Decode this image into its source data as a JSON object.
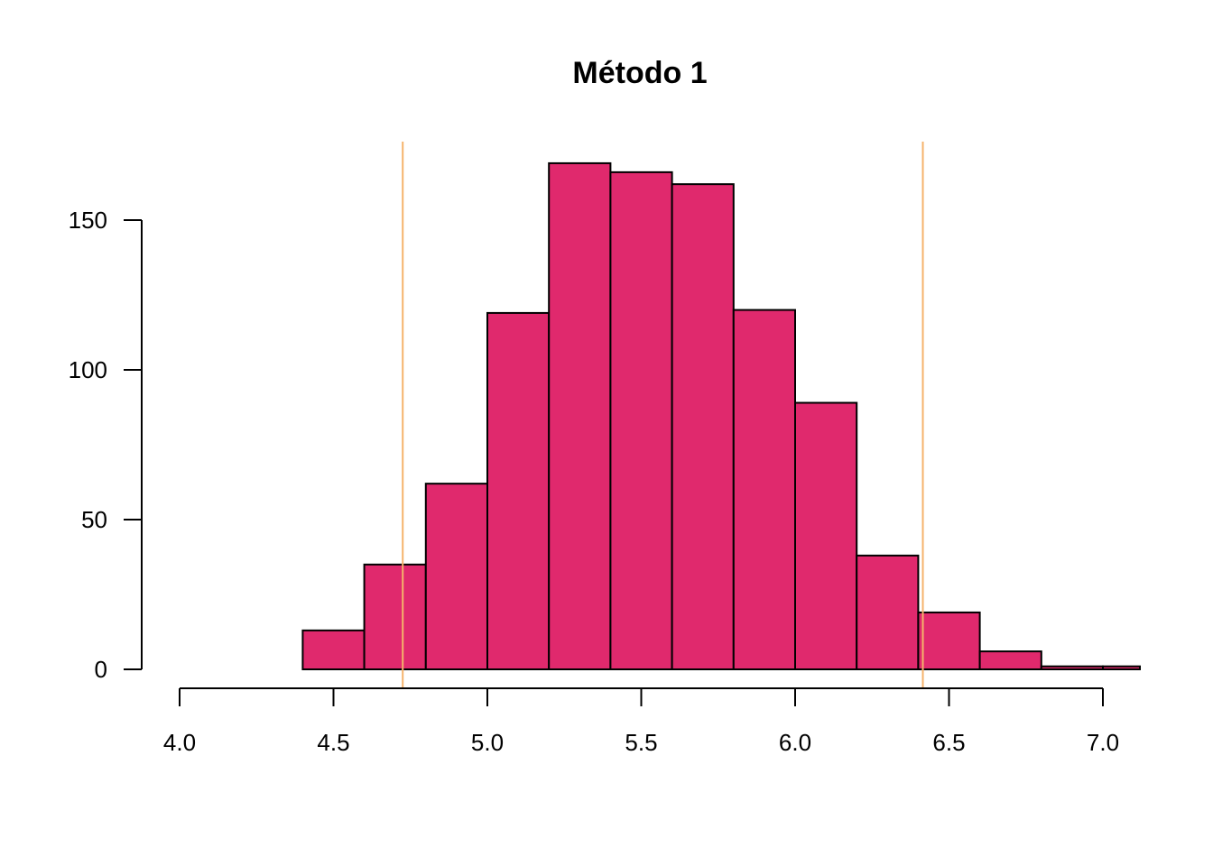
{
  "chart_data": {
    "type": "bar",
    "title": "Método 1",
    "xlabel": "",
    "ylabel": "",
    "x_ticks": [
      4.0,
      4.5,
      5.0,
      5.5,
      6.0,
      6.5,
      7.0
    ],
    "x_tick_labels": [
      "4.0",
      "4.5",
      "5.0",
      "5.5",
      "6.0",
      "6.5",
      "7.0"
    ],
    "y_ticks": [
      0,
      50,
      100,
      150
    ],
    "y_tick_labels": [
      "0",
      "50",
      "100",
      "150"
    ],
    "xlim": [
      4.0,
      7.12
    ],
    "ylim": [
      0,
      172
    ],
    "bins": [
      {
        "x0": 4.4,
        "x1": 4.6,
        "count": 13
      },
      {
        "x0": 4.6,
        "x1": 4.8,
        "count": 35
      },
      {
        "x0": 4.8,
        "x1": 5.0,
        "count": 62
      },
      {
        "x0": 5.0,
        "x1": 5.2,
        "count": 119
      },
      {
        "x0": 5.2,
        "x1": 5.4,
        "count": 169
      },
      {
        "x0": 5.4,
        "x1": 5.6,
        "count": 166
      },
      {
        "x0": 5.6,
        "x1": 5.8,
        "count": 162
      },
      {
        "x0": 5.8,
        "x1": 6.0,
        "count": 120
      },
      {
        "x0": 6.0,
        "x1": 6.2,
        "count": 89
      },
      {
        "x0": 6.2,
        "x1": 6.4,
        "count": 38
      },
      {
        "x0": 6.4,
        "x1": 6.6,
        "count": 19
      },
      {
        "x0": 6.6,
        "x1": 6.8,
        "count": 6
      },
      {
        "x0": 6.8,
        "x1": 7.0,
        "count": 1
      },
      {
        "x0": 7.0,
        "x1": 7.2,
        "count": 1
      }
    ],
    "vertical_lines": [
      4.725,
      6.415
    ],
    "bar_color": "#E0296D",
    "bar_stroke": "#000000",
    "line_color": "#F5B26B",
    "grid": false,
    "legend": "none"
  }
}
